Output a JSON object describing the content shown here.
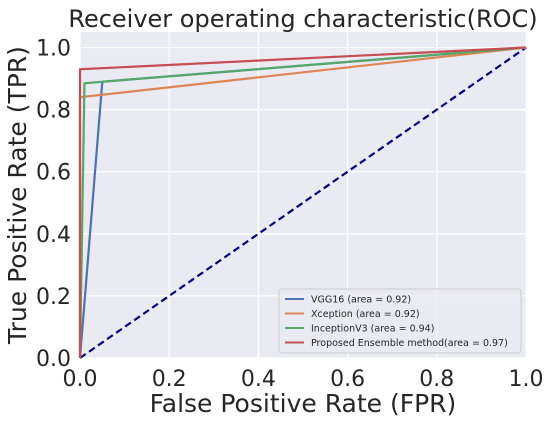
{
  "chart_data": {
    "type": "line",
    "title": "Receiver operating characteristic(ROC)",
    "xlabel": "False Positive Rate (FPR)",
    "ylabel": "True Positive Rate (TPR)",
    "xlim": [
      0,
      1
    ],
    "ylim": [
      0,
      1.05
    ],
    "x_ticks": [
      0.0,
      0.2,
      0.4,
      0.6,
      0.8,
      1.0
    ],
    "x_tick_labels": [
      "0.0",
      "0.2",
      "0.4",
      "0.6",
      "0.8",
      "1.0"
    ],
    "y_ticks": [
      0.0,
      0.2,
      0.4,
      0.6,
      0.8,
      1.0
    ],
    "y_tick_labels": [
      "0.0",
      "0.2",
      "0.4",
      "0.6",
      "0.8",
      "1.0"
    ],
    "grid": true,
    "legend_position": "lower-right",
    "series": [
      {
        "name": "VGG16 (area = 0.92)",
        "color": "#4c72b0",
        "x": [
          0.0,
          0.05,
          1.0
        ],
        "y": [
          0.0,
          0.89,
          1.0
        ]
      },
      {
        "name": "Xception (area = 0.92)",
        "color": "#dd8452",
        "x": [
          0.0,
          0.0,
          1.0
        ],
        "y": [
          0.0,
          0.84,
          1.0
        ]
      },
      {
        "name": "InceptionV3 (area = 0.94)",
        "color": "#55a868",
        "x": [
          0.0,
          0.01,
          1.0
        ],
        "y": [
          0.0,
          0.885,
          1.0
        ]
      },
      {
        "name": "Proposed Ensemble method(area = 0.97)",
        "color": "#c44e52",
        "x": [
          0.0,
          0.0,
          1.0
        ],
        "y": [
          0.0,
          0.93,
          1.0
        ]
      }
    ],
    "reference_line": {
      "color": "#000080",
      "style": "dashed",
      "x": [
        0.0,
        1.0
      ],
      "y": [
        0.0,
        1.0
      ]
    }
  }
}
